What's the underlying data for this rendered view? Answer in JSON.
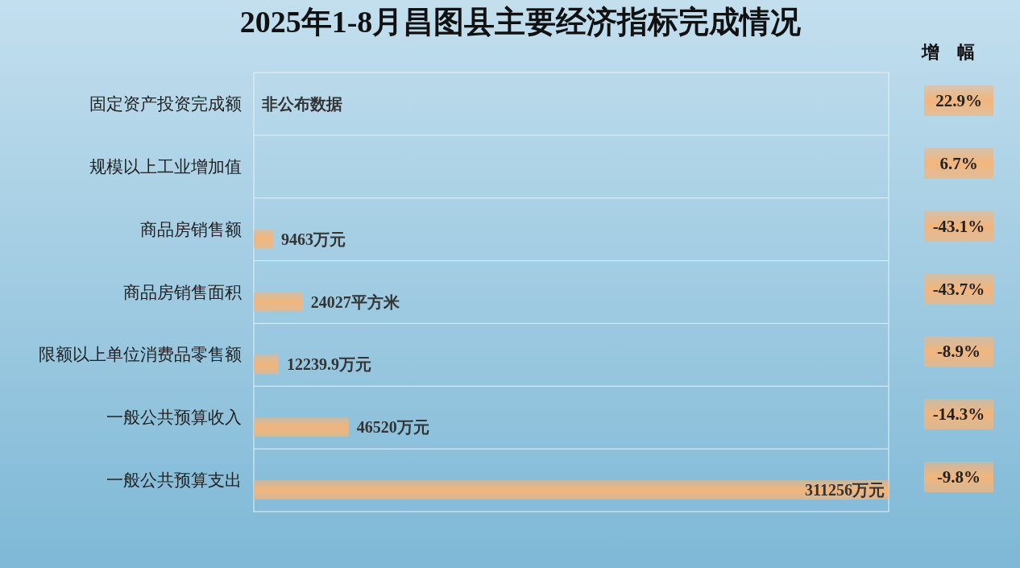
{
  "chart_data": [
    {
      "type": "bar",
      "orientation": "horizontal",
      "title": "2025年1-8月昌图县主要经济指标完成情况",
      "categories": [
        "固定资产投资完成额",
        "规模以上工业增加值",
        "商品房销售额",
        "商品房销售面积",
        "限额以上单位消费品零售额",
        "一般公共预算收入",
        "一般公共预算支出"
      ],
      "values": [
        null,
        null,
        9463,
        24027,
        12239.9,
        46520,
        311256
      ],
      "value_labels": [
        "非公布数据",
        null,
        "9463万元",
        "24027平方米",
        "12239.9万元",
        "46520万元",
        "311256万元"
      ],
      "color": "#f3b57c",
      "xlim": [
        0,
        311256
      ],
      "tick_labels": "y"
    },
    {
      "type": "other",
      "title": "增幅",
      "categories": [
        null,
        null,
        null,
        null,
        null,
        null,
        null
      ],
      "values": [
        22.9,
        6.7,
        -43.1,
        -43.7,
        -8.9,
        -14.3,
        -9.8
      ],
      "value_labels": [
        "22.9%",
        "6.7%",
        "-43.1%",
        "-43.7%",
        "-8.9%",
        "-14.3%",
        "-9.8%"
      ],
      "color": "#f3b57c"
    }
  ]
}
